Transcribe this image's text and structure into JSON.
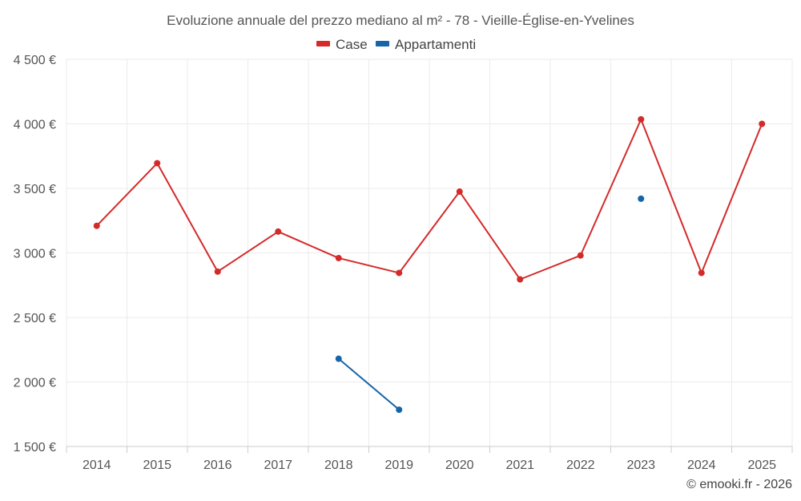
{
  "chart_data": {
    "type": "line",
    "title": "Evoluzione annuale del prezzo mediano al m² - 78 - Vieille-Église-en-Yvelines",
    "categories": [
      "2014",
      "2015",
      "2016",
      "2017",
      "2018",
      "2019",
      "2020",
      "2021",
      "2022",
      "2023",
      "2024",
      "2025"
    ],
    "series": [
      {
        "name": "Case",
        "color": "#d42a2a",
        "values": [
          3210,
          3695,
          2855,
          3165,
          2960,
          2845,
          3475,
          2795,
          2980,
          4035,
          2845,
          4000
        ]
      },
      {
        "name": "Appartamenti",
        "color": "#1565a8",
        "values": [
          null,
          null,
          null,
          null,
          2180,
          1785,
          null,
          null,
          null,
          3420,
          null,
          null
        ]
      }
    ],
    "ylim": [
      1500,
      4500
    ],
    "yticks": [
      1500,
      2000,
      2500,
      3000,
      3500,
      4000,
      4500
    ],
    "ytick_labels": [
      "1 500 €",
      "2 000 €",
      "2 500 €",
      "3 000 €",
      "3 500 €",
      "4 000 €",
      "4 500 €"
    ],
    "xlabel": "",
    "ylabel": "",
    "grid": true,
    "legend_position": "top-center"
  },
  "credit": "© emooki.fr - 2026"
}
